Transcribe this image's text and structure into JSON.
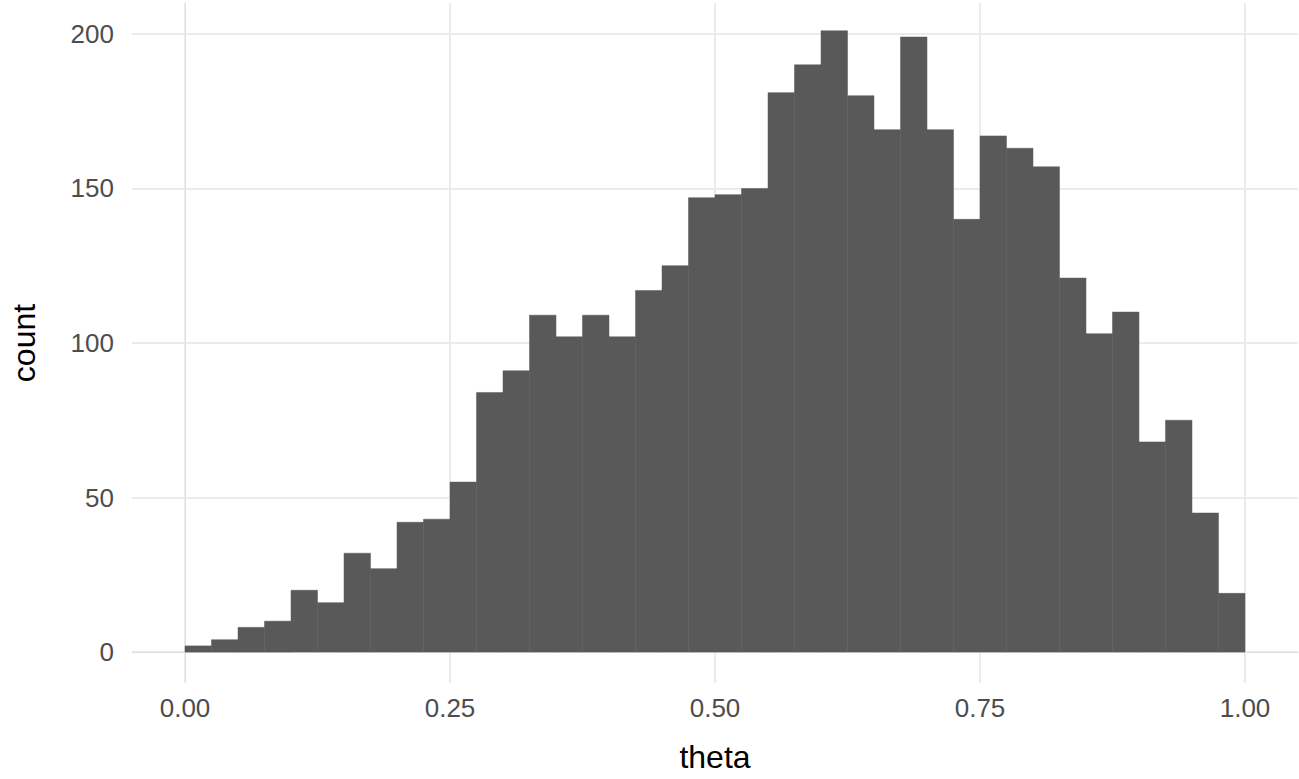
{
  "chart_data": {
    "type": "histogram",
    "x_label": "theta",
    "y_label": "count",
    "bins": [
      0,
      0.025,
      0.05,
      0.075,
      0.1,
      0.125,
      0.15,
      0.175,
      0.2,
      0.225,
      0.25,
      0.275,
      0.3,
      0.325,
      0.35,
      0.375,
      0.4,
      0.425,
      0.45,
      0.475,
      0.5,
      0.525,
      0.55,
      0.575,
      0.6,
      0.625,
      0.65,
      0.675,
      0.7,
      0.725,
      0.75,
      0.775,
      0.8,
      0.825,
      0.85,
      0.875,
      0.9,
      0.925,
      0.95,
      0.975,
      1
    ],
    "counts": [
      2,
      4,
      8,
      10,
      20,
      16,
      32,
      27,
      42,
      43,
      55,
      84,
      91,
      109,
      102,
      109,
      102,
      117,
      125,
      147,
      148,
      150,
      181,
      190,
      201,
      180,
      169,
      199,
      169,
      140,
      167,
      163,
      157,
      121,
      103,
      110,
      68,
      75,
      45,
      19
    ],
    "color": "#595959",
    "xlim": [
      -0.05,
      1.05
    ],
    "xticks": [
      {
        "value": 0,
        "label": "0.00"
      },
      {
        "value": 0.25,
        "label": "0.25"
      },
      {
        "value": 0.5,
        "label": "0.50"
      },
      {
        "value": 0.75,
        "label": "0.75"
      },
      {
        "value": 1,
        "label": "1.00"
      }
    ],
    "ylim": [
      -10,
      210
    ],
    "yticks": [
      0,
      50,
      100,
      150,
      200
    ],
    "grid": true
  }
}
